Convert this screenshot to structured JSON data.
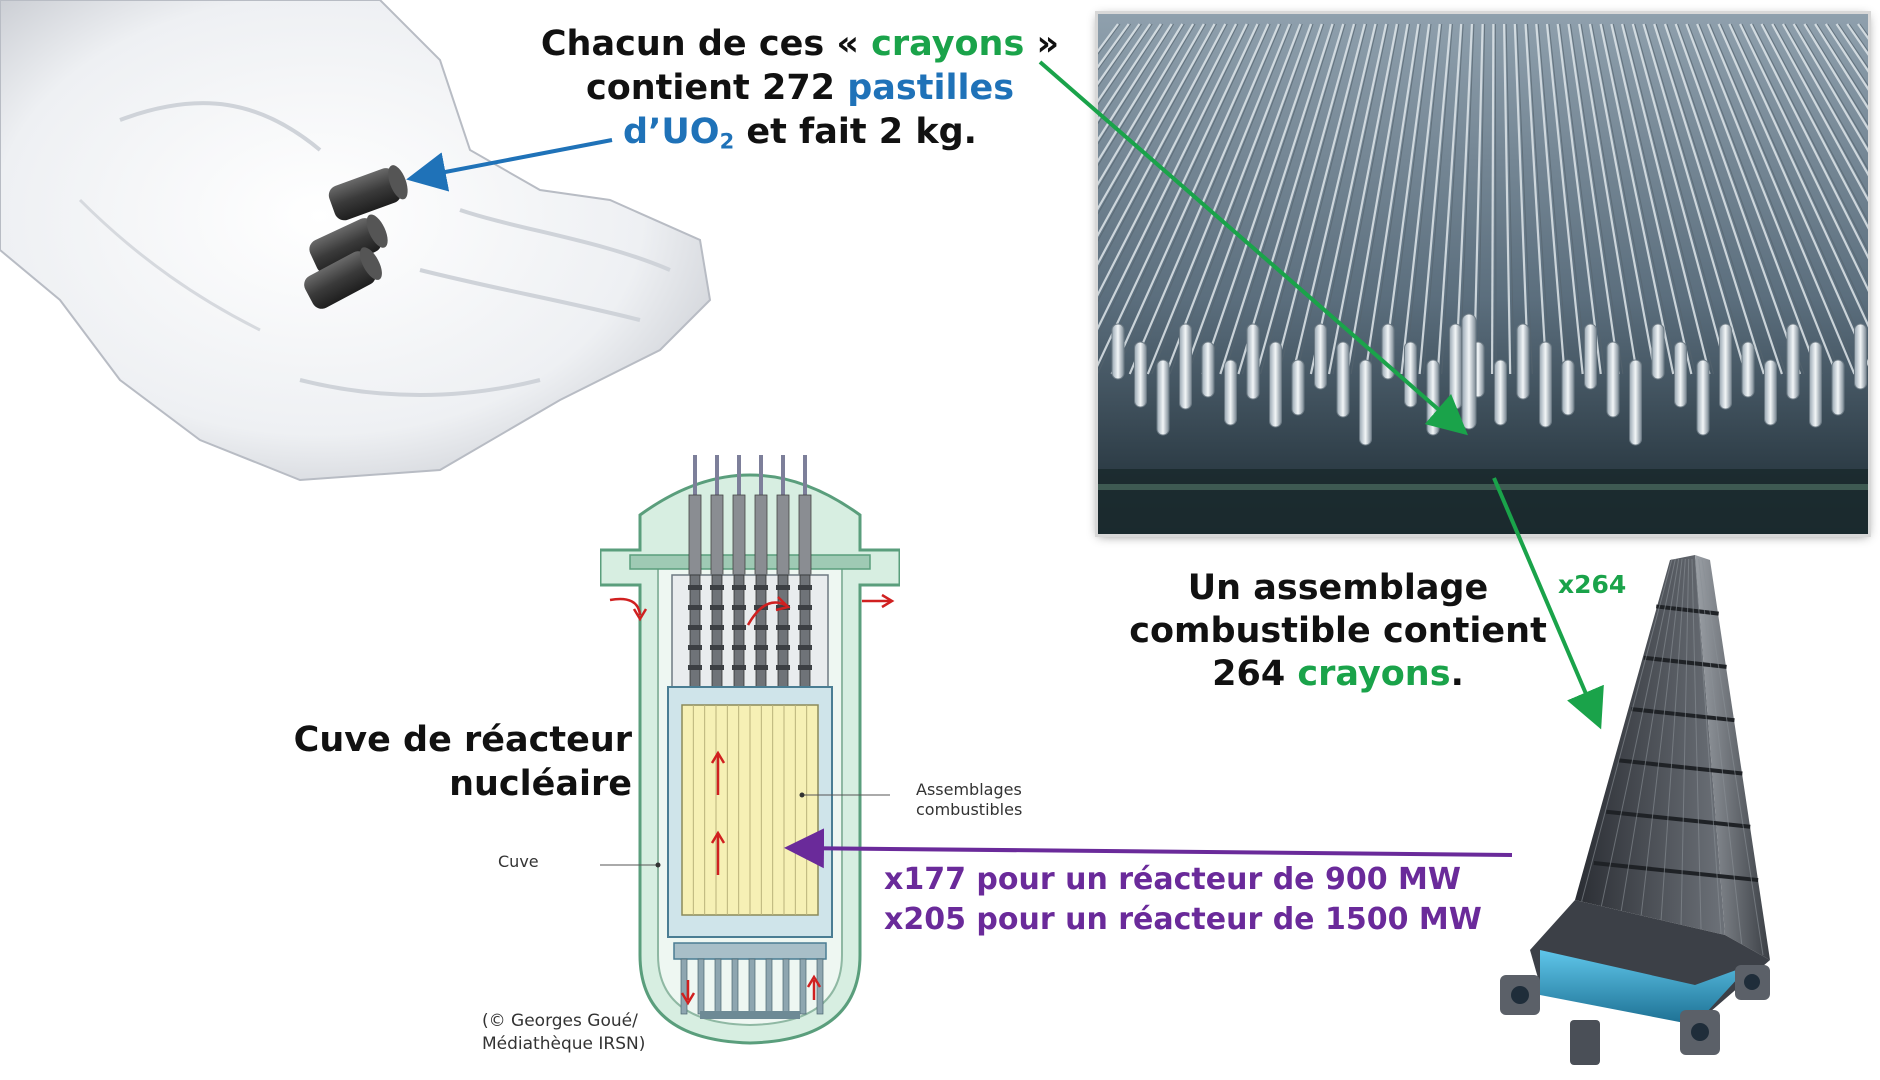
{
  "captions": {
    "pellets": {
      "l1_pre": "Chacun de ces « ",
      "l1_em": "crayons",
      "l1_post": " »",
      "l2_pre": "contient 272 ",
      "l2_em": "pastilles",
      "l3_em": "d’UO",
      "l3_sub": "2",
      "l3_post": " et fait 2 kg."
    },
    "assembly": {
      "l1": "Un assemblage",
      "l2": "combustible contient",
      "l3_pre": "264 ",
      "l3_em": "crayons",
      "l3_post": "."
    },
    "vessel": {
      "l1": "Cuve de réacteur",
      "l2": "nucléaire"
    },
    "counts": {
      "l1": "x177 pour un réacteur de 900 MW",
      "l2": "x205 pour un réacteur de 1500 MW"
    },
    "multiplier": "x264"
  },
  "diagram_labels": {
    "assemblages_l1": "Assemblages",
    "assemblages_l2": "combustibles",
    "cuve": "Cuve",
    "credit_l1": "(© Georges Goué/",
    "credit_l2": "Médiathèque IRSN)"
  },
  "colors": {
    "green": "#1aa34a",
    "blue": "#1f72b8",
    "purple": "#6a2a9a",
    "text": "#111111"
  },
  "icons": {
    "pellets": "uo2-pellets-in-glove",
    "rods": "fuel-rods-photo",
    "assembly": "fuel-assembly",
    "vessel": "reactor-vessel-cutaway"
  }
}
